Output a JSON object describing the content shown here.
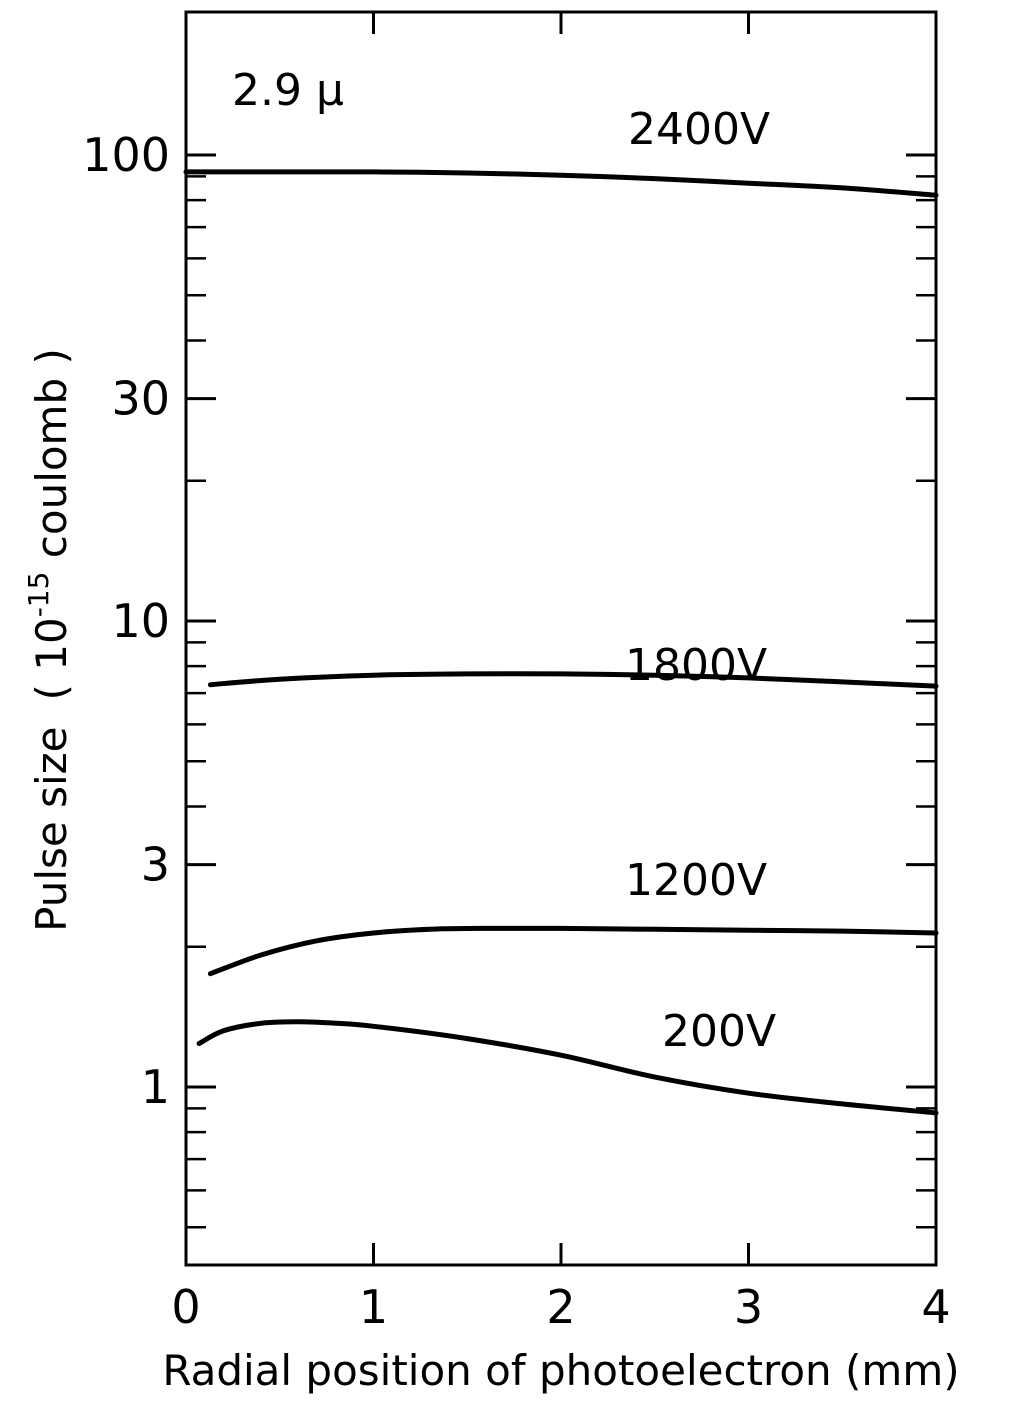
{
  "chart_data": {
    "type": "line",
    "title": "",
    "annotation": "2.9 μ",
    "xlabel": "Radial position of photoelectron (mm)",
    "ylabel": "Pulse size",
    "ylabel_unit": "( 10",
    "ylabel_exponent": "-15",
    "ylabel_unit_tail": " coulomb )",
    "xlim": [
      0,
      4
    ],
    "ylim": [
      0.3,
      200
    ],
    "y_scale": "log",
    "grid": false,
    "legend": "none",
    "x_ticks": [
      {
        "value": 0,
        "label": "0"
      },
      {
        "value": 1,
        "label": "1"
      },
      {
        "value": 2,
        "label": "2"
      },
      {
        "value": 3,
        "label": "3"
      },
      {
        "value": 4,
        "label": "4"
      }
    ],
    "y_ticks_labeled": [
      {
        "value": 1,
        "label": "1"
      },
      {
        "value": 3,
        "label": "3"
      },
      {
        "value": 10,
        "label": "10"
      },
      {
        "value": 30,
        "label": "30"
      },
      {
        "value": 100,
        "label": "100"
      }
    ],
    "y_ticks_minor": [
      0.5,
      0.6,
      0.7,
      0.8,
      0.9,
      2,
      4,
      5,
      6,
      7,
      8,
      9,
      20,
      40,
      50,
      60,
      70,
      80,
      90
    ],
    "series": [
      {
        "name": "2400V",
        "x": [
          0.0,
          0.5,
          1.0,
          1.5,
          2.0,
          2.5,
          3.0,
          3.5,
          4.0
        ],
        "y": [
          92,
          92,
          92,
          91.5,
          90.5,
          89,
          87,
          85,
          82
        ]
      },
      {
        "name": "1800V",
        "x": [
          0.13,
          0.5,
          1.0,
          1.5,
          2.0,
          2.5,
          3.0,
          3.5,
          4.0
        ],
        "y": [
          7.3,
          7.5,
          7.65,
          7.7,
          7.7,
          7.65,
          7.55,
          7.4,
          7.25
        ]
      },
      {
        "name": "1200V",
        "x": [
          0.13,
          0.4,
          0.7,
          1.0,
          1.3,
          1.6,
          2.0,
          2.5,
          3.0,
          3.5,
          4.0
        ],
        "y": [
          1.75,
          1.92,
          2.06,
          2.14,
          2.18,
          2.19,
          2.19,
          2.18,
          2.17,
          2.16,
          2.14
        ]
      },
      {
        "name": "200V",
        "x": [
          0.07,
          0.2,
          0.4,
          0.6,
          0.8,
          1.0,
          1.5,
          2.0,
          2.5,
          3.0,
          3.5,
          4.0
        ],
        "y": [
          1.24,
          1.32,
          1.37,
          1.38,
          1.37,
          1.35,
          1.27,
          1.17,
          1.05,
          0.97,
          0.92,
          0.88
        ]
      }
    ]
  }
}
